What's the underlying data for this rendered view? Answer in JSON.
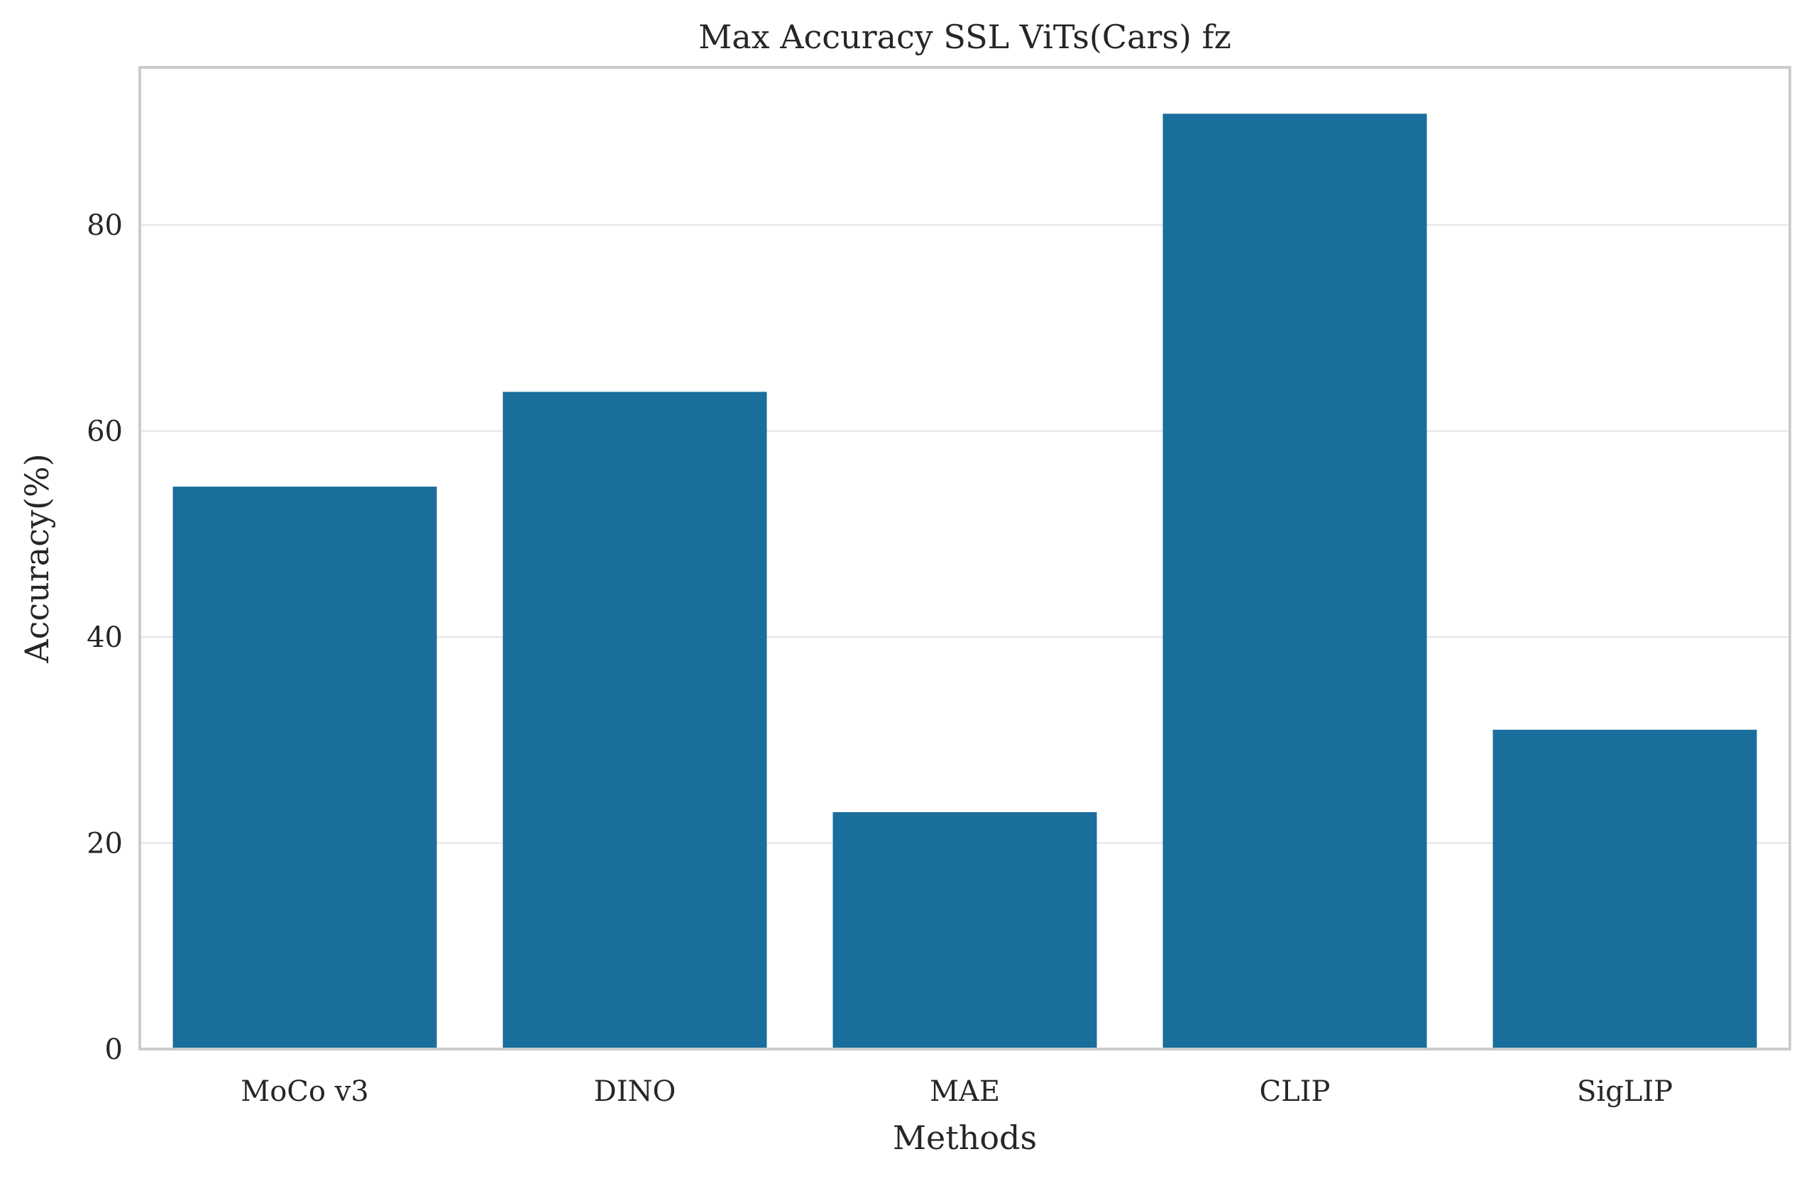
{
  "chart_data": {
    "type": "bar",
    "title": "Max Accuracy SSL ViTs(Cars) fz",
    "xlabel": "Methods",
    "ylabel": "Accuracy(%)",
    "categories": [
      "MoCo v3",
      "DINO",
      "MAE",
      "CLIP",
      "SigLIP"
    ],
    "values": [
      54.6,
      63.8,
      23.0,
      90.8,
      31.0
    ],
    "ylim": [
      0,
      95.3
    ],
    "yticks": [
      0,
      20,
      40,
      60,
      80
    ],
    "grid": "horizontal",
    "bar_color": "#1a6e9c",
    "grid_color": "#e3e3e3",
    "spine_color": "#cccccc"
  }
}
